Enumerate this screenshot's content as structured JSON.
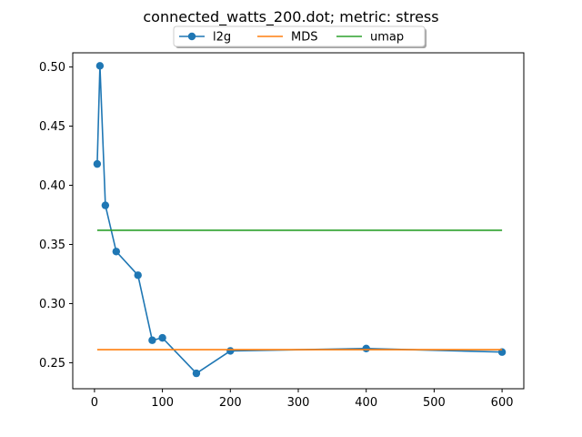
{
  "chart_data": {
    "type": "line",
    "title": "connected_watts_200.dot; metric: stress",
    "xlabel": "",
    "ylabel": "",
    "xlim": [
      -32,
      632
    ],
    "ylim": [
      0.228,
      0.512
    ],
    "xticks": [
      0,
      100,
      200,
      300,
      400,
      500,
      600
    ],
    "yticks": [
      0.25,
      0.3,
      0.35,
      0.4,
      0.45,
      0.5
    ],
    "ytick_labels": [
      "0.25",
      "0.30",
      "0.35",
      "0.40",
      "0.45",
      "0.50"
    ],
    "legend": {
      "placement": "top-center",
      "columns": 3
    },
    "grid": false,
    "series": [
      {
        "name": "l2g",
        "color": "#1f77b4",
        "marker": "circle",
        "x": [
          4,
          8,
          16,
          32,
          64,
          85,
          100,
          150,
          200,
          400,
          600
        ],
        "y": [
          0.418,
          0.501,
          0.383,
          0.344,
          0.324,
          0.269,
          0.271,
          0.241,
          0.26,
          0.262,
          0.259
        ]
      },
      {
        "name": "MDS",
        "color": "#ff7f0e",
        "marker": "none",
        "x": [
          4,
          600
        ],
        "y": [
          0.261,
          0.261
        ]
      },
      {
        "name": "umap",
        "color": "#2ca02c",
        "marker": "none",
        "x": [
          4,
          600
        ],
        "y": [
          0.362,
          0.362
        ]
      }
    ]
  }
}
